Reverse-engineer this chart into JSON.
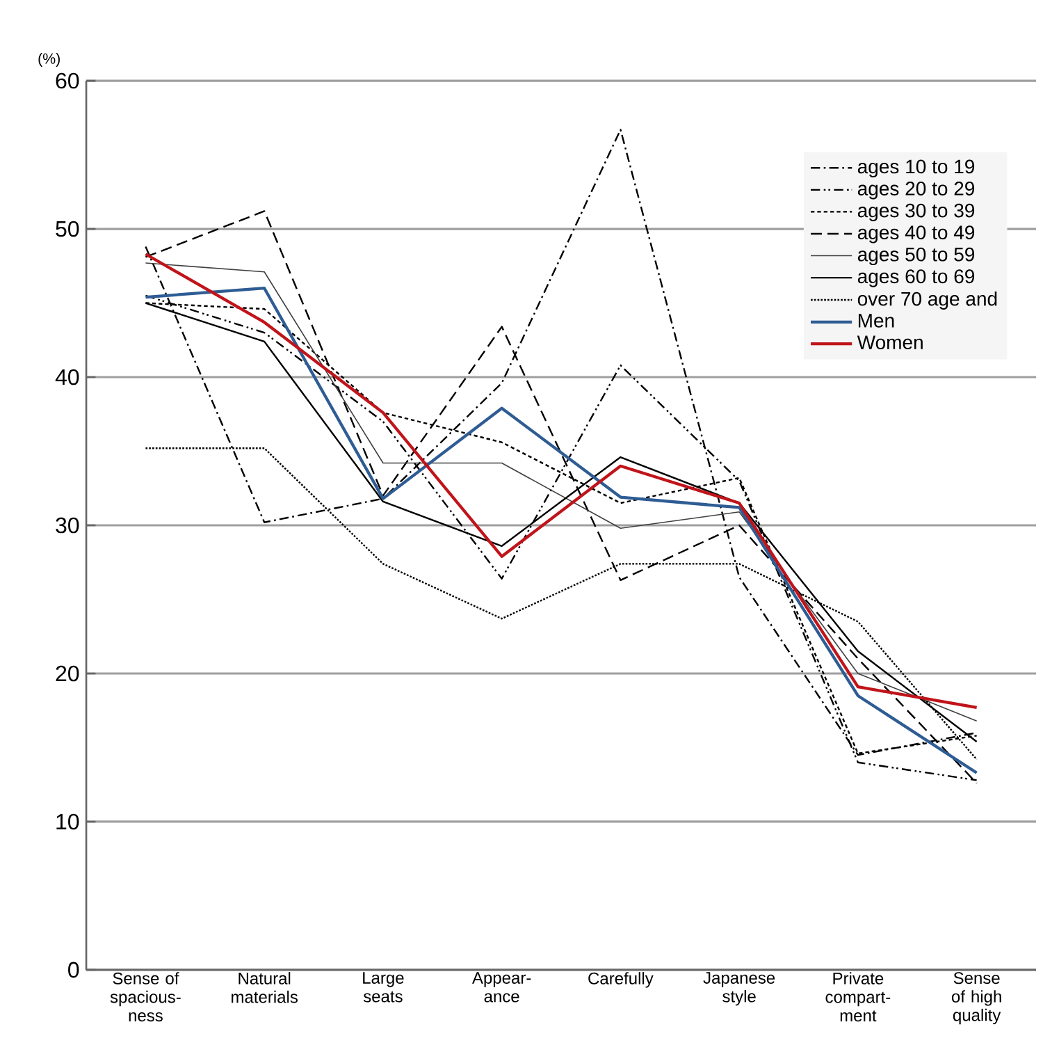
{
  "chart_data": {
    "type": "line",
    "ylabel": "(%)",
    "categories": [
      "Sense of spacious-ness",
      "Natural materials",
      "Large seats",
      "Appear-ance",
      "Carefully",
      "Japanese style",
      "Private compart-ment",
      "Sense of high quality"
    ],
    "ylim": [
      0,
      60
    ],
    "yticks": [
      0,
      10,
      20,
      30,
      40,
      50,
      60
    ],
    "grid": "y",
    "legend": "top right",
    "series": [
      {
        "name": "ages 10 to 19",
        "color": "#000000",
        "line_style": "dashdot",
        "values": [
          48.8,
          30.2,
          31.8,
          39.6,
          56.7,
          26.5,
          14.5,
          16.0
        ]
      },
      {
        "name": "ages 20 to 29",
        "color": "#000000",
        "line_style": "dashdotdot",
        "values": [
          45.5,
          43.0,
          37.0,
          26.4,
          40.8,
          33.0,
          14.0,
          12.8
        ]
      },
      {
        "name": "ages 30 to 39",
        "color": "#000000",
        "line_style": "dotted",
        "values": [
          45.0,
          44.6,
          37.6,
          35.6,
          31.5,
          33.2,
          14.6,
          15.8
        ]
      },
      {
        "name": "ages 40 to 49",
        "color": "#000000",
        "line_style": "dashed",
        "values": [
          48.1,
          51.2,
          32.0,
          43.4,
          26.3,
          30.0,
          21.0,
          12.6
        ]
      },
      {
        "name": "ages 50 to 59",
        "color": "#404040",
        "line_style": "solid",
        "values": [
          47.7,
          47.1,
          34.2,
          34.2,
          29.8,
          30.9,
          20.0,
          16.8
        ]
      },
      {
        "name": "ages 60 to 69",
        "color": "#000000",
        "line_style": "solid",
        "values": [
          45.0,
          42.4,
          31.6,
          28.6,
          34.6,
          31.5,
          21.5,
          15.4
        ]
      },
      {
        "name": "over 70 age and",
        "color": "#000000",
        "line_style": "densely dotted",
        "values": [
          35.2,
          35.2,
          27.4,
          23.7,
          27.4,
          27.4,
          23.5,
          14.2
        ]
      },
      {
        "name": "Men",
        "color": "#2e5c94",
        "line_style": "solid",
        "values": [
          45.4,
          46.0,
          31.8,
          37.9,
          31.9,
          31.2,
          18.5,
          13.3
        ]
      },
      {
        "name": "Women",
        "color": "#c0141a",
        "line_style": "solid",
        "values": [
          48.3,
          43.7,
          37.6,
          27.9,
          34.0,
          31.5,
          19.1,
          17.7
        ]
      }
    ]
  }
}
